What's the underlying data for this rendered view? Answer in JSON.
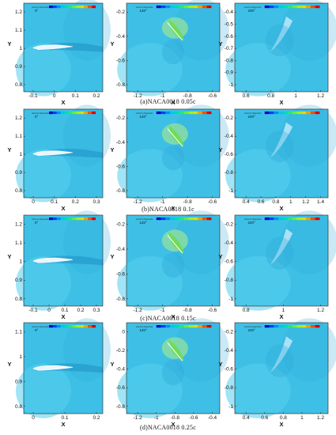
{
  "figure": {
    "rows": [
      {
        "caption": "(a)NACA0018  0.05c",
        "panels": [
          {
            "angle": "0°",
            "xticks": [
              "-0.1",
              "0",
              "0.1",
              "0.2"
            ],
            "yticks": [
              "1.2",
              "1.1",
              "1",
              "0.9",
              "0.8"
            ],
            "xlabel": "X",
            "ylabel": "Y",
            "kind": "wing"
          },
          {
            "angle": "120°",
            "xticks": [
              "-1.2",
              "-1",
              "-0.8",
              "-0.6"
            ],
            "yticks": [
              "-0.2",
              "-0.4",
              "-0.6",
              "-0.8"
            ],
            "xlabel": "X",
            "ylabel": "Y",
            "kind": "vortex"
          },
          {
            "angle": "240°",
            "xticks": [
              "0.6",
              "0.8",
              "1",
              "1.2"
            ],
            "yticks": [
              "-0.4",
              "-0.5",
              "-0.6",
              "-0.7",
              "-0.8",
              "-0.9",
              "-1"
            ],
            "xlabel": "X",
            "ylabel": "Y",
            "kind": "wake"
          }
        ]
      },
      {
        "caption": "(b)NACA0018  0.1c",
        "panels": [
          {
            "angle": "0°",
            "xticks": [
              "0",
              "0.1",
              "0.2",
              "0.3"
            ],
            "yticks": [
              "1.2",
              "1.1",
              "1",
              "0.9",
              "0.8"
            ],
            "xlabel": "X",
            "ylabel": "Y",
            "kind": "wing"
          },
          {
            "angle": "120°",
            "xticks": [
              "-1.2",
              "-1",
              "-0.8",
              "-0.6"
            ],
            "yticks": [
              "-0.2",
              "-0.4",
              "-0.6",
              "-0.8"
            ],
            "xlabel": "X",
            "ylabel": "Y",
            "kind": "vortex"
          },
          {
            "angle": "240°",
            "xticks": [
              "0.4",
              "0.6",
              "0.8",
              "1",
              "1.2",
              "1.4"
            ],
            "yticks": [
              "-0.2",
              "-0.4",
              "-0.6",
              "-0.8",
              "-1"
            ],
            "xlabel": "X",
            "ylabel": "Y",
            "kind": "wake"
          }
        ]
      },
      {
        "caption": "(c)NACA0018  0.15c",
        "panels": [
          {
            "angle": "0°",
            "xticks": [
              "-0.1",
              "0",
              "0.1",
              "0.2",
              "0.3"
            ],
            "yticks": [
              "1.2",
              "1.1",
              "1",
              "0.9",
              "0.8"
            ],
            "xlabel": "X",
            "ylabel": "Y",
            "kind": "wing"
          },
          {
            "angle": "120°",
            "xticks": [
              "-1.2",
              "-1",
              "-0.8",
              "-0.6"
            ],
            "yticks": [
              "-0.2",
              "-0.4",
              "-0.6",
              "-0.8"
            ],
            "xlabel": "X",
            "ylabel": "Y",
            "kind": "vortex"
          },
          {
            "angle": "240°",
            "xticks": [
              "0.8",
              "1",
              "1.2"
            ],
            "yticks": [
              "-0.2",
              "-0.4",
              "-0.6",
              "-0.8",
              "-1"
            ],
            "xlabel": "X",
            "ylabel": "Y",
            "kind": "wake"
          }
        ]
      },
      {
        "caption": "(d)NACA0018  0.25c",
        "panels": [
          {
            "angle": "0°",
            "xticks": [
              "0",
              "0.1",
              "0.2"
            ],
            "yticks": [
              "1.1",
              "1",
              "0.9",
              "0.8"
            ],
            "xlabel": "X",
            "ylabel": "Y",
            "kind": "wing"
          },
          {
            "angle": "120°",
            "xticks": [
              "-1.2",
              "-1",
              "-0.8",
              "-0.6",
              "-0.4"
            ],
            "yticks": [
              "0",
              "-0.2",
              "-0.4",
              "-0.6",
              "-0.8"
            ],
            "xlabel": "X",
            "ylabel": "Y",
            "kind": "vortex"
          },
          {
            "angle": "240°",
            "xticks": [
              "0.4",
              "0.6",
              "0.8",
              "1",
              "1.2"
            ],
            "yticks": [
              "-0.2",
              "-0.4",
              "-0.6",
              "-0.8",
              "-1"
            ],
            "xlabel": "X",
            "ylabel": "Y",
            "kind": "wake"
          }
        ]
      }
    ],
    "legend_title": "Velocity Magnitude",
    "colors": {
      "field": "#3ec0e6",
      "field_light": "#56cdec",
      "field_dark": "#2aa7d6",
      "core": "#8fe0a0",
      "core_green": "#6fdc4a",
      "wake": "#1f8fc4"
    }
  }
}
